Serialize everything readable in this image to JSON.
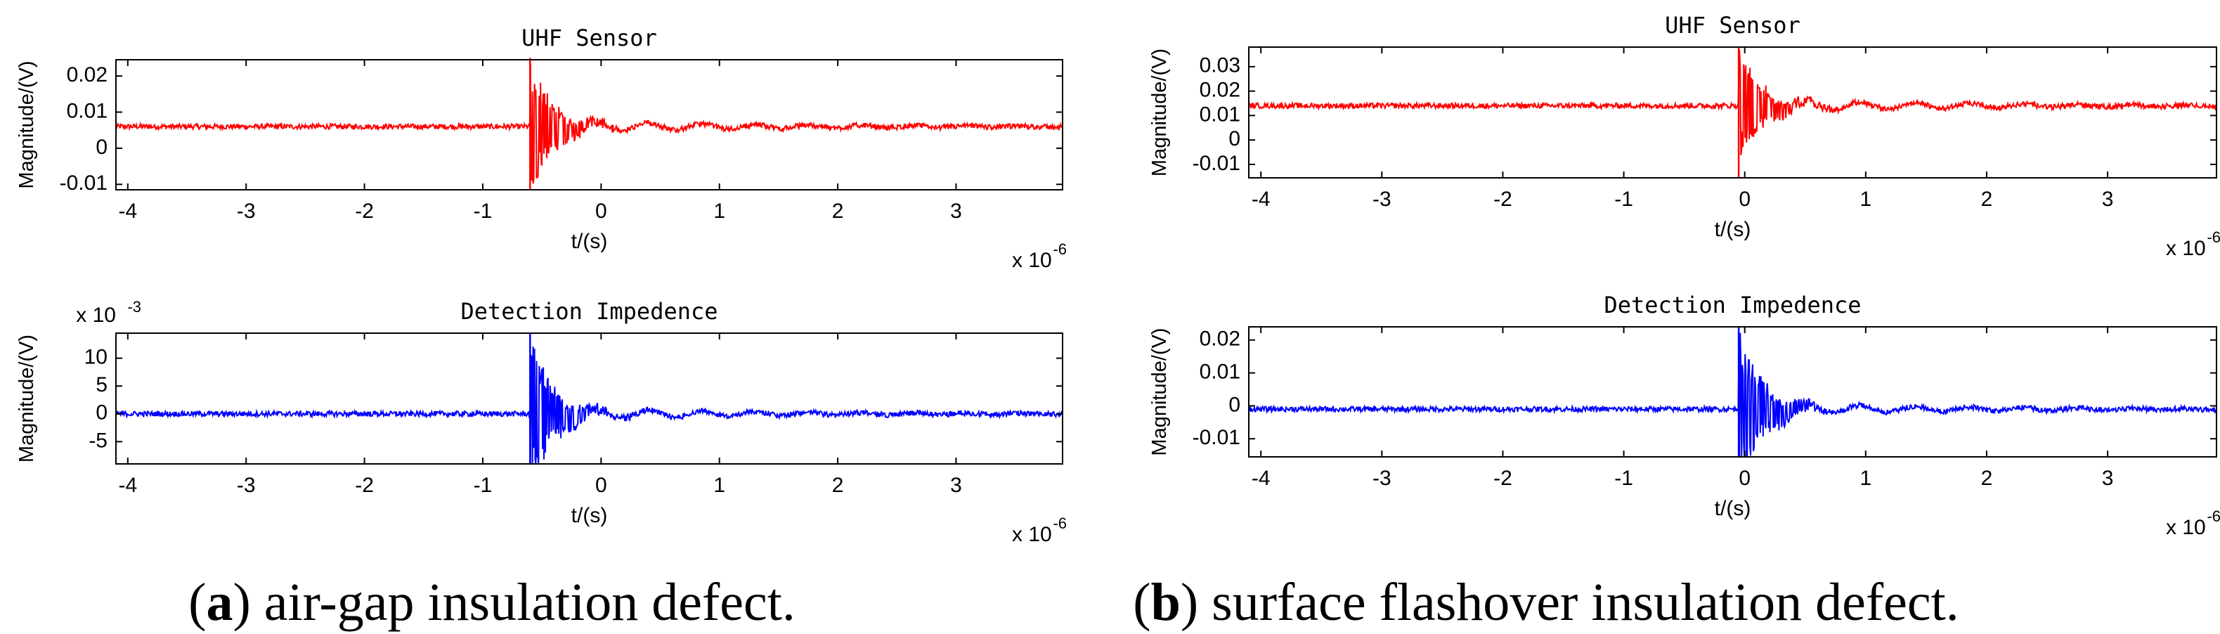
{
  "chart_data": [
    {
      "type": "line",
      "title": "UHF Sensor",
      "xlabel": "t/(s)",
      "ylabel": "Magnitude/(V)",
      "x_multiplier": "x 10",
      "x_exponent": "-6",
      "y_multiplier": "",
      "y_exponent": "",
      "xlim": [
        -4.1,
        3.9
      ],
      "ylim": [
        -0.0115,
        0.0245
      ],
      "xticks": [
        -4,
        -3,
        -2,
        -1,
        0,
        1,
        2,
        3
      ],
      "xtick_labels": [
        "-4",
        "-3",
        "-2",
        "-1",
        "0",
        "1",
        "2",
        "3"
      ],
      "yticks": [
        -0.01,
        0,
        0.01,
        0.02
      ],
      "ytick_labels": [
        "-0.01",
        "0",
        "0.01",
        "0.02"
      ],
      "color": "#ff0000",
      "series": [
        {
          "name": "UHF Sensor",
          "baseline": 0.006,
          "spike_time": -0.6,
          "spike_max": 0.025,
          "spike_min": -0.0115
        }
      ]
    },
    {
      "type": "line",
      "title": "Detection Impedence",
      "xlabel": "t/(s)",
      "ylabel": "Magnitude/(V)",
      "x_multiplier": "x 10",
      "x_exponent": "-6",
      "y_multiplier": "x 10",
      "y_exponent": "-3",
      "xlim": [
        -4.1,
        3.9
      ],
      "ylim": [
        -9,
        14.5
      ],
      "xticks": [
        -4,
        -3,
        -2,
        -1,
        0,
        1,
        2,
        3
      ],
      "xtick_labels": [
        "-4",
        "-3",
        "-2",
        "-1",
        "0",
        "1",
        "2",
        "3"
      ],
      "yticks": [
        -5,
        0,
        5,
        10
      ],
      "ytick_labels": [
        "-5",
        "0",
        "5",
        "10"
      ],
      "color": "#0000ff",
      "series": [
        {
          "name": "Detection Impedence",
          "baseline": 0,
          "spike_time": -0.6,
          "spike_max": 14.5,
          "spike_min": -9
        }
      ]
    },
    {
      "type": "line",
      "title": "UHF Sensor",
      "xlabel": "t/(s)",
      "ylabel": "Magnitude/(V)",
      "x_multiplier": "x 10",
      "x_exponent": "-6",
      "y_multiplier": "",
      "y_exponent": "",
      "xlim": [
        -4.1,
        3.9
      ],
      "ylim": [
        -0.0155,
        0.038
      ],
      "xticks": [
        -4,
        -3,
        -2,
        -1,
        0,
        1,
        2,
        3
      ],
      "xtick_labels": [
        "-4",
        "-3",
        "-2",
        "-1",
        "0",
        "1",
        "2",
        "3"
      ],
      "yticks": [
        -0.01,
        0,
        0.01,
        0.02,
        0.03
      ],
      "ytick_labels": [
        "-0.01",
        "0",
        "0.01",
        "0.02",
        "0.03"
      ],
      "color": "#ff0000",
      "series": [
        {
          "name": "UHF Sensor",
          "baseline": 0.014,
          "spike_time": -0.05,
          "spike_max": 0.038,
          "spike_min": -0.0155
        }
      ]
    },
    {
      "type": "line",
      "title": "Detection Impedence",
      "xlabel": "t/(s)",
      "ylabel": "Magnitude/(V)",
      "x_multiplier": "x 10",
      "x_exponent": "-6",
      "y_multiplier": "",
      "y_exponent": "",
      "xlim": [
        -4.1,
        3.9
      ],
      "ylim": [
        -0.0155,
        0.024
      ],
      "xticks": [
        -4,
        -3,
        -2,
        -1,
        0,
        1,
        2,
        3
      ],
      "xtick_labels": [
        "-4",
        "-3",
        "-2",
        "-1",
        "0",
        "1",
        "2",
        "3"
      ],
      "yticks": [
        -0.01,
        0,
        0.01,
        0.02
      ],
      "ytick_labels": [
        "-0.01",
        "0",
        "0.01",
        "0.02"
      ],
      "color": "#0000ff",
      "series": [
        {
          "name": "Detection Impedence",
          "baseline": -0.001,
          "spike_time": -0.05,
          "spike_max": 0.024,
          "spike_min": -0.0155
        }
      ]
    }
  ],
  "captions": [
    {
      "letter": "a",
      "open": "(",
      "close": ")",
      "text": " air-gap insulation defect."
    },
    {
      "letter": "b",
      "open": "(",
      "close": ")",
      "text": " surface flashover insulation defect."
    }
  ]
}
